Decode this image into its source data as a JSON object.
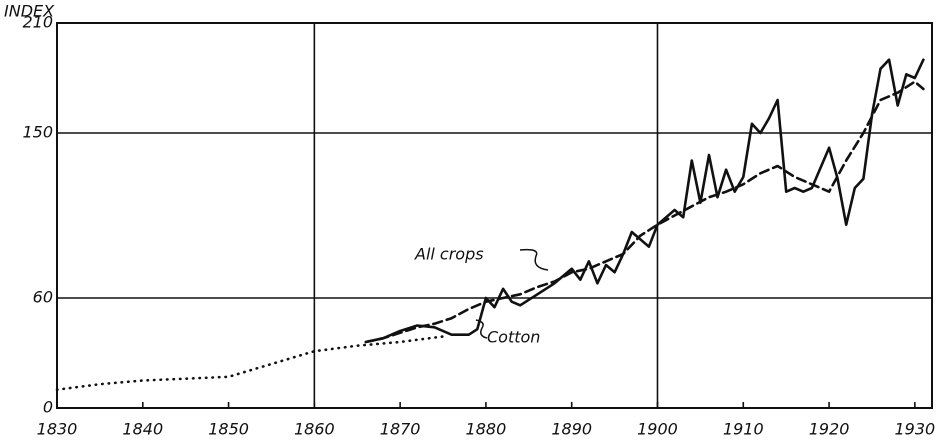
{
  "chart_data": {
    "type": "line",
    "ylabel": "INDEX",
    "xlim": [
      1830,
      1932
    ],
    "ylim": [
      0,
      210
    ],
    "xticks": [
      1830,
      1840,
      1850,
      1860,
      1870,
      1880,
      1890,
      1900,
      1910,
      1920,
      1930
    ],
    "yticks": [
      0,
      60,
      150,
      210
    ],
    "xgrid": [
      1860,
      1900
    ],
    "series": [
      {
        "style": "dotted",
        "color": "#111111",
        "x": [
          1830,
          1835,
          1840,
          1845,
          1850,
          1855,
          1860,
          1865,
          1870,
          1875
        ],
        "values": [
          10,
          13,
          15,
          16,
          17,
          24,
          31,
          34,
          36,
          39
        ]
      },
      {
        "name": "All crops",
        "style": "dashed",
        "color": "#111111",
        "x": [
          1866,
          1868,
          1870,
          1872,
          1874,
          1876,
          1878,
          1880,
          1882,
          1884,
          1886,
          1888,
          1890,
          1892,
          1894,
          1896,
          1898,
          1900,
          1902,
          1904,
          1906,
          1908,
          1910,
          1912,
          1914,
          1916,
          1918,
          1920,
          1922,
          1924,
          1926,
          1928,
          1930,
          1931
        ],
        "values": [
          36,
          38,
          41,
          44,
          46,
          49,
          54,
          58,
          60,
          62,
          66,
          69,
          74,
          76,
          80,
          84,
          94,
          100,
          105,
          110,
          115,
          118,
          122,
          128,
          132,
          126,
          122,
          118,
          135,
          150,
          168,
          172,
          178,
          174
        ]
      },
      {
        "name": "Cotton",
        "style": "solid",
        "color": "#111111",
        "x": [
          1866,
          1868,
          1870,
          1872,
          1874,
          1876,
          1878,
          1879,
          1880,
          1881,
          1882,
          1883,
          1884,
          1886,
          1888,
          1890,
          1891,
          1892,
          1893,
          1894,
          1895,
          1896,
          1897,
          1898,
          1899,
          1900,
          1902,
          1903,
          1904,
          1905,
          1906,
          1907,
          1908,
          1909,
          1910,
          1911,
          1912,
          1913,
          1914,
          1915,
          1916,
          1917,
          1918,
          1920,
          1921,
          1922,
          1923,
          1924,
          1925,
          1926,
          1927,
          1928,
          1929,
          1930,
          1931
        ],
        "values": [
          36,
          38,
          42,
          45,
          44,
          40,
          40,
          43,
          60,
          55,
          65,
          58,
          56,
          62,
          68,
          76,
          70,
          80,
          68,
          78,
          74,
          84,
          96,
          92,
          88,
          100,
          108,
          104,
          135,
          112,
          138,
          115,
          130,
          118,
          126,
          155,
          150,
          158,
          168,
          118,
          120,
          118,
          120,
          142,
          125,
          100,
          120,
          125,
          160,
          185,
          190,
          165,
          182,
          180,
          190
        ]
      }
    ]
  }
}
